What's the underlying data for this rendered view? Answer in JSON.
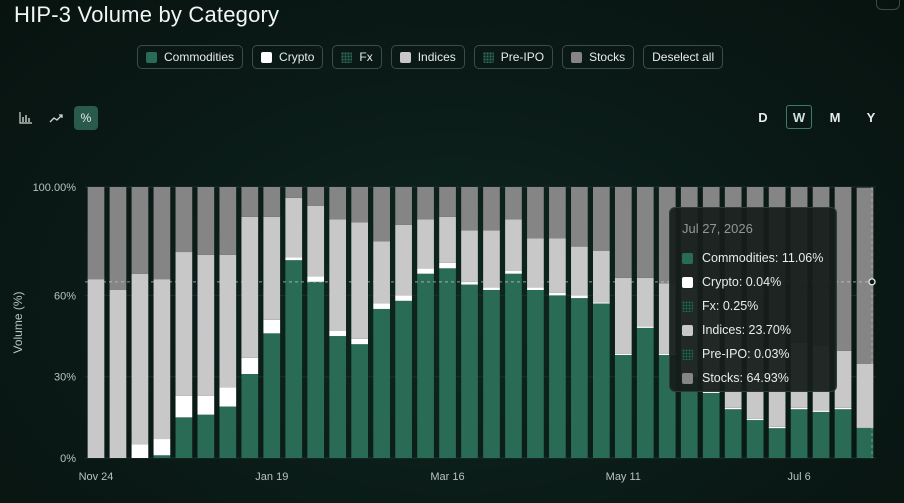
{
  "title": "HIP-3 Volume by Category",
  "legend": [
    {
      "label": "Commodities",
      "color": "#2a6b55",
      "style": "solid"
    },
    {
      "label": "Crypto",
      "color": "#ffffff",
      "style": "solid"
    },
    {
      "label": "Fx",
      "color": "#2a6b55",
      "style": "dotted"
    },
    {
      "label": "Indices",
      "color": "#c8c8c8",
      "style": "solid"
    },
    {
      "label": "Pre-IPO",
      "color": "#2a6b55",
      "style": "dotted"
    },
    {
      "label": "Stocks",
      "color": "#858585",
      "style": "solid"
    }
  ],
  "deselect_label": "Deselect all",
  "toolbar": {
    "bar_icon": "bar-chart-icon",
    "line_icon": "line-chart-icon",
    "percent_label": "%"
  },
  "timeframes": [
    "D",
    "W",
    "M",
    "Y"
  ],
  "active_timeframe": "W",
  "tooltip": {
    "date": "Jul 27, 2026",
    "rows": [
      {
        "label": "Commodities: 11.06%",
        "color": "#2a6b55",
        "style": "solid"
      },
      {
        "label": "Crypto: 0.04%",
        "color": "#ffffff",
        "style": "solid"
      },
      {
        "label": "Fx: 0.25%",
        "color": "#2a6b55",
        "style": "dotted"
      },
      {
        "label": "Indices: 23.70%",
        "color": "#c8c8c8",
        "style": "solid"
      },
      {
        "label": "Pre-IPO: 0.03%",
        "color": "#2a6b55",
        "style": "dotted"
      },
      {
        "label": "Stocks: 64.93%",
        "color": "#858585",
        "style": "solid"
      }
    ]
  },
  "chart_data": {
    "type": "bar",
    "stacked": true,
    "ylabel": "Volume (%)",
    "yticks": [
      "0%",
      "30%",
      "60%",
      "100.00%"
    ],
    "ytick_values": [
      0,
      30,
      60,
      100
    ],
    "xtick_labels": [
      "Nov 24",
      "Jan 19",
      "Mar 16",
      "May 11",
      "Jul 6"
    ],
    "xtick_positions": [
      0,
      8,
      16,
      24,
      32
    ],
    "colors": {
      "Commodities": "#2a6b55",
      "Crypto": "#ffffff",
      "Indices": "#c8c8c8",
      "Stocks": "#858585"
    },
    "crosshair_y": 65,
    "series": [
      {
        "name": "Commodities",
        "values": [
          0,
          0,
          0,
          1,
          15,
          16,
          19,
          31,
          46,
          73,
          65,
          45,
          42,
          55,
          58,
          68,
          70,
          64,
          62,
          68,
          62,
          60,
          59,
          57,
          38,
          48,
          38,
          30,
          24,
          18,
          14,
          11,
          18,
          17,
          18,
          11.06
        ]
      },
      {
        "name": "Crypto",
        "values": [
          0,
          0,
          5,
          6,
          8,
          7,
          7,
          6,
          5,
          1,
          2,
          2,
          2,
          2,
          2,
          2,
          2,
          1,
          1,
          1,
          1,
          1,
          1,
          0.5,
          0.5,
          0.5,
          0.5,
          0.5,
          0.5,
          0.5,
          0.5,
          0.5,
          0.5,
          0.5,
          0.5,
          0.04
        ]
      },
      {
        "name": "Indices",
        "values": [
          66,
          62,
          63,
          59,
          53,
          52,
          49,
          52,
          38,
          22,
          26,
          41,
          43,
          23,
          26,
          18,
          17,
          19,
          21,
          19,
          18,
          20,
          18,
          19,
          28,
          18,
          26,
          32,
          30,
          27,
          25,
          28,
          24,
          24,
          21,
          23.7
        ]
      },
      {
        "name": "Stocks",
        "values": [
          34,
          38,
          32,
          34,
          24,
          25,
          25,
          11,
          11,
          4,
          7,
          12,
          13,
          20,
          14,
          12,
          11,
          16,
          16,
          12,
          19,
          19,
          22,
          23.5,
          33.5,
          33.5,
          35.5,
          37.5,
          45.5,
          54.5,
          60.5,
          60.5,
          57.5,
          58.5,
          60.5,
          64.93
        ]
      }
    ]
  }
}
